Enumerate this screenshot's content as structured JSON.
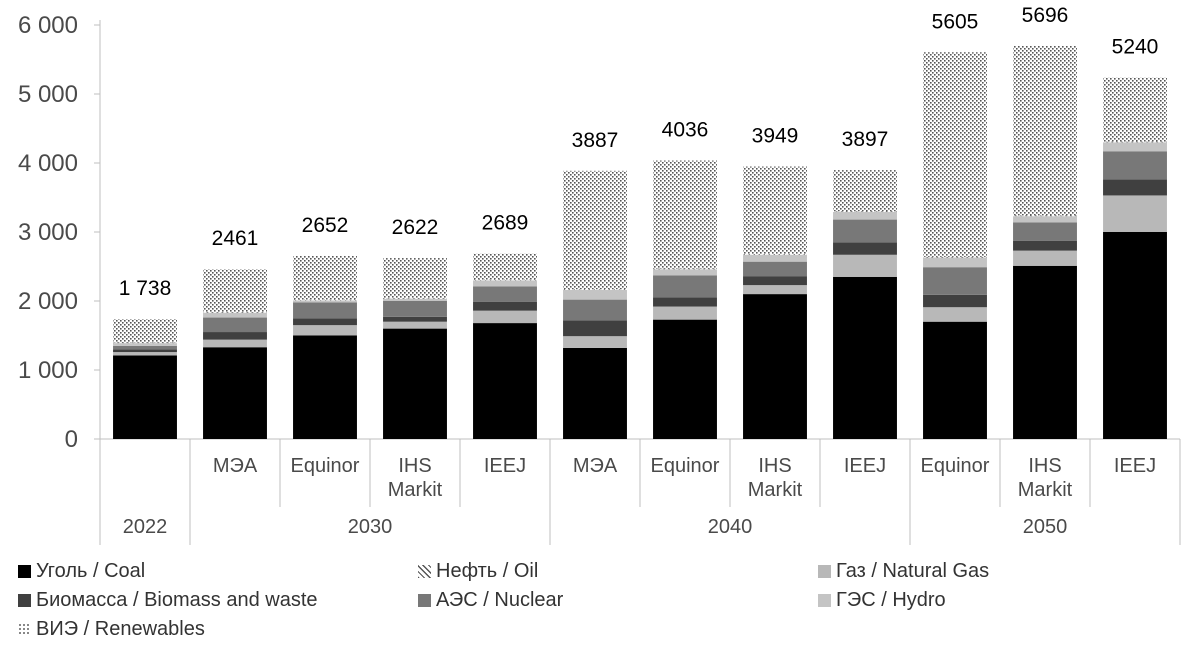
{
  "chart_data": {
    "type": "bar",
    "stacked": true,
    "y_ticks": [
      "0",
      "1 000",
      "2 000",
      "3 000",
      "4 000",
      "5 000",
      "6 000"
    ],
    "ylim": [
      0,
      6000
    ],
    "grid": false,
    "legend_position": "bottom",
    "categories": [
      {
        "label": "",
        "group": "2022"
      },
      {
        "label": "МЭА",
        "group": "2030"
      },
      {
        "label": "Equinor",
        "group": "2030"
      },
      {
        "label": "IHS Markit",
        "group": "2030"
      },
      {
        "label": "IEEJ",
        "group": "2030"
      },
      {
        "label": "МЭА",
        "group": "2040"
      },
      {
        "label": "Equinor",
        "group": "2040"
      },
      {
        "label": "IHS Markit",
        "group": "2040"
      },
      {
        "label": "IEEJ",
        "group": "2040"
      },
      {
        "label": "Equinor",
        "group": "2050"
      },
      {
        "label": "IHS Markit",
        "group": "2050"
      },
      {
        "label": "IEEJ",
        "group": "2050"
      }
    ],
    "groups": [
      {
        "label": "2022",
        "span": 1
      },
      {
        "label": "2030",
        "span": 4
      },
      {
        "label": "2040",
        "span": 4
      },
      {
        "label": "2050",
        "span": 3
      }
    ],
    "totals": [
      "1 738",
      "2461",
      "2652",
      "2622",
      "2689",
      "3887",
      "4036",
      "3949",
      "3897",
      "5605",
      "5696",
      "5240"
    ],
    "series": [
      {
        "name": "Уголь / Coal",
        "color": "#000000",
        "pattern": "solid",
        "values": [
          1210,
          1330,
          1500,
          1600,
          1680,
          1320,
          1730,
          2100,
          2350,
          1700,
          2510,
          3000
        ]
      },
      {
        "name": "Газ / Natural Gas",
        "color": "#b8b8b8",
        "pattern": "solid",
        "values": [
          50,
          110,
          150,
          100,
          180,
          170,
          190,
          130,
          320,
          210,
          220,
          530
        ]
      },
      {
        "name": "Биомасса / Biomass and waste",
        "color": "#404040",
        "pattern": "solid",
        "values": [
          40,
          110,
          100,
          70,
          130,
          230,
          130,
          130,
          180,
          180,
          140,
          230
        ]
      },
      {
        "name": "АЭС / Nuclear",
        "color": "#787878",
        "pattern": "solid",
        "values": [
          50,
          210,
          230,
          230,
          220,
          300,
          320,
          210,
          330,
          400,
          270,
          410
        ]
      },
      {
        "name": "ГЭС / Hydro",
        "color": "#c4c4c4",
        "pattern": "solid",
        "values": [
          40,
          70,
          30,
          30,
          90,
          140,
          90,
          100,
          110,
          140,
          90,
          130
        ]
      },
      {
        "name": "Нефть / Oil",
        "color": "#555555",
        "pattern": "hatch",
        "values": [
          10,
          10,
          10,
          10,
          10,
          10,
          10,
          10,
          10,
          10,
          10,
          10
        ]
      },
      {
        "name": "ВИЭ / Renewables",
        "color": "#777777",
        "pattern": "dots",
        "values": [
          338,
          621,
          632,
          582,
          379,
          1717,
          1566,
          1269,
          597,
          2965,
          2456,
          930
        ]
      }
    ]
  },
  "legend": [
    {
      "label": "Уголь / Coal",
      "color": "#000000",
      "pattern": "solid"
    },
    {
      "label": "Нефть / Oil",
      "color": "#555555",
      "pattern": "hatch"
    },
    {
      "label": "Газ / Natural Gas",
      "color": "#b8b8b8",
      "pattern": "solid"
    },
    {
      "label": "Биомасса / Biomass and waste",
      "color": "#404040",
      "pattern": "solid"
    },
    {
      "label": "АЭС / Nuclear",
      "color": "#787878",
      "pattern": "solid"
    },
    {
      "label": "ГЭС / Hydro",
      "color": "#c4c4c4",
      "pattern": "solid"
    },
    {
      "label": "ВИЭ / Renewables",
      "color": "#777777",
      "pattern": "dots"
    }
  ]
}
